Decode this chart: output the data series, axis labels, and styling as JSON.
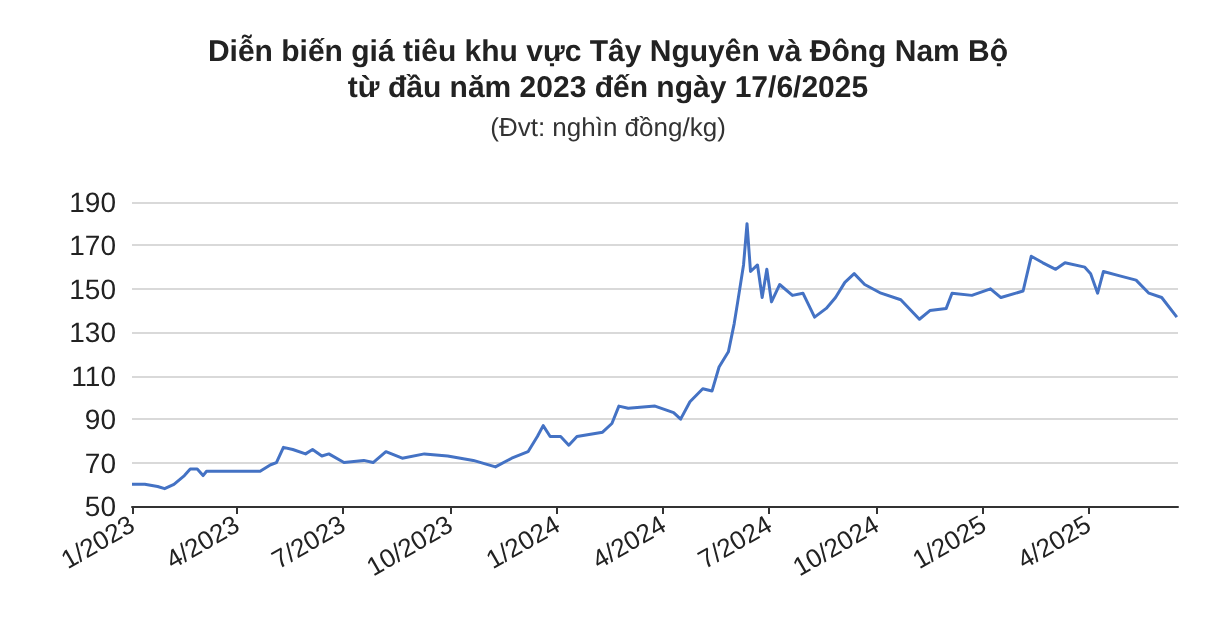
{
  "chart_data": {
    "type": "line",
    "title": "Diễn biến giá tiêu khu vực Tây Nguyên và Đông Nam Bộ\ntừ đầu năm 2023 đến ngày 17/6/2025",
    "subtitle": "(Đvt: nghìn đồng/kg)",
    "x": [
      "2023-01-01",
      "2023-01-12",
      "2023-01-23",
      "2023-01-29",
      "2023-02-06",
      "2023-02-15",
      "2023-02-20",
      "2023-02-26",
      "2023-03-03",
      "2023-03-06",
      "2023-03-24",
      "2023-04-07",
      "2023-04-21",
      "2023-04-30",
      "2023-05-05",
      "2023-05-11",
      "2023-05-19",
      "2023-05-30",
      "2023-06-05",
      "2023-06-13",
      "2023-06-19",
      "2023-07-02",
      "2023-07-19",
      "2023-07-27",
      "2023-08-07",
      "2023-08-21",
      "2023-09-09",
      "2023-09-29",
      "2023-10-21",
      "2023-11-09",
      "2023-11-23",
      "2023-12-07",
      "2023-12-15",
      "2023-12-20",
      "2023-12-26",
      "2024-01-04",
      "2024-01-11",
      "2024-01-18",
      "2024-02-09",
      "2024-02-17",
      "2024-02-23",
      "2024-03-02",
      "2024-03-25",
      "2024-04-10",
      "2024-04-16",
      "2024-04-24",
      "2024-05-05",
      "2024-05-13",
      "2024-05-19",
      "2024-05-27",
      "2024-06-01",
      "2024-06-04",
      "2024-06-09",
      "2024-06-12",
      "2024-06-15",
      "2024-06-21",
      "2024-06-25",
      "2024-06-29",
      "2024-07-03",
      "2024-07-10",
      "2024-07-21",
      "2024-07-30",
      "2024-08-09",
      "2024-08-19",
      "2024-08-27",
      "2024-09-04",
      "2024-09-12",
      "2024-09-21",
      "2024-10-05",
      "2024-10-22",
      "2024-11-07",
      "2024-11-16",
      "2024-11-30",
      "2024-12-05",
      "2024-12-22",
      "2025-01-07",
      "2025-01-16",
      "2025-02-04",
      "2025-02-11",
      "2025-02-21",
      "2025-03-04",
      "2025-03-12",
      "2025-03-29",
      "2025-04-03",
      "2025-04-09",
      "2025-04-14",
      "2025-04-28",
      "2025-05-12",
      "2025-05-23",
      "2025-06-03",
      "2025-06-16"
    ],
    "series": [
      {
        "color": "#4472c4",
        "values": [
          60,
          60,
          59,
          58,
          60,
          64,
          67,
          67,
          64,
          66,
          66,
          66,
          66,
          69,
          70,
          77,
          76,
          74,
          76,
          73,
          74,
          70,
          71,
          70,
          75,
          72,
          74,
          73,
          71,
          68,
          72,
          75,
          82,
          87,
          82,
          82,
          78,
          82,
          84,
          88,
          96,
          95,
          96,
          93,
          90,
          98,
          104,
          103,
          114,
          121,
          134,
          144,
          161,
          180,
          158,
          161,
          146,
          159,
          144,
          152,
          147,
          148,
          137,
          141,
          146,
          153,
          157,
          152,
          148,
          145,
          136,
          140,
          141,
          148,
          147,
          150,
          146,
          149,
          165,
          162,
          159,
          162,
          160,
          157,
          148,
          158,
          156,
          154,
          148,
          146,
          137
        ]
      }
    ],
    "xlim": [
      "2023-01-01",
      "2025-06-17"
    ],
    "xticks": [
      {
        "value": "2023-01-01",
        "label": "1/2023"
      },
      {
        "value": "2023-04-01",
        "label": "4/2023"
      },
      {
        "value": "2023-07-01",
        "label": "7/2023"
      },
      {
        "value": "2023-10-01",
        "label": "10/2023"
      },
      {
        "value": "2024-01-01",
        "label": "1/2024"
      },
      {
        "value": "2024-04-01",
        "label": "4/2024"
      },
      {
        "value": "2024-07-01",
        "label": "7/2024"
      },
      {
        "value": "2024-10-01",
        "label": "10/2024"
      },
      {
        "value": "2025-01-01",
        "label": "1/2025"
      },
      {
        "value": "2025-04-01",
        "label": "4/2025"
      }
    ],
    "ylim": [
      50,
      190
    ],
    "yticks": [
      50,
      70,
      90,
      110,
      130,
      150,
      170,
      190
    ],
    "grid": "y",
    "marker": "none",
    "line_style": "solid"
  }
}
